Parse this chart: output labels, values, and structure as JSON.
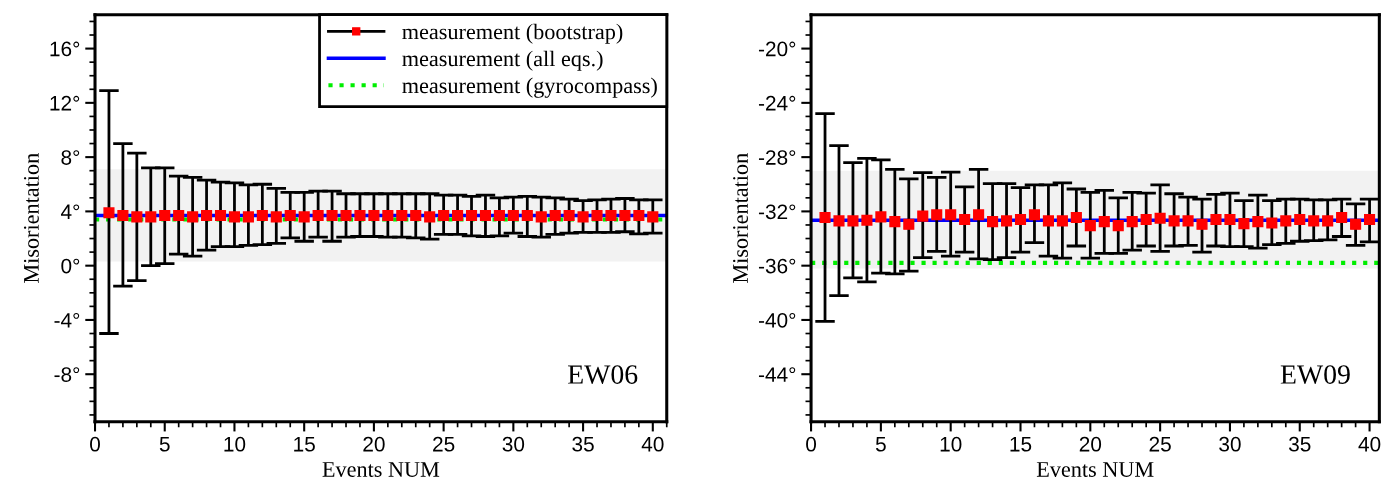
{
  "chart_data": [
    {
      "type": "scatter",
      "xlabel": "Events NUM",
      "ylabel": "Misorientation",
      "xlim": [
        0,
        41
      ],
      "xticks": [
        0,
        5,
        10,
        15,
        20,
        25,
        30,
        35,
        40
      ],
      "ylim": [
        -11.5,
        18.5
      ],
      "yticks": [
        {
          "value": -8,
          "label": "-8°"
        },
        {
          "value": -4,
          "label": "-4°"
        },
        {
          "value": 0,
          "label": "0°"
        },
        {
          "value": 4,
          "label": "4°"
        },
        {
          "value": 8,
          "label": "8°"
        },
        {
          "value": 12,
          "label": "12°"
        },
        {
          "value": 16,
          "label": "16°"
        }
      ],
      "x": [
        1,
        2,
        3,
        4,
        5,
        6,
        7,
        8,
        9,
        10,
        11,
        12,
        13,
        14,
        15,
        16,
        17,
        18,
        19,
        20,
        21,
        22,
        23,
        24,
        25,
        26,
        27,
        28,
        29,
        30,
        31,
        32,
        33,
        34,
        35,
        36,
        37,
        38,
        39,
        40
      ],
      "series": [
        {
          "name": "measurement (bootstrap)",
          "color": "#ff0000",
          "marker": "square",
          "values": [
            3.9,
            3.7,
            3.6,
            3.6,
            3.7,
            3.7,
            3.6,
            3.7,
            3.7,
            3.6,
            3.6,
            3.7,
            3.6,
            3.7,
            3.6,
            3.7,
            3.7,
            3.7,
            3.7,
            3.7,
            3.7,
            3.7,
            3.7,
            3.6,
            3.7,
            3.7,
            3.7,
            3.7,
            3.7,
            3.7,
            3.7,
            3.6,
            3.7,
            3.7,
            3.6,
            3.7,
            3.7,
            3.7,
            3.7,
            3.6
          ],
          "errors": [
            [
              -5.0,
              12.9
            ],
            [
              -1.5,
              9.0
            ],
            [
              -1.1,
              8.3
            ],
            [
              0.0,
              7.2
            ],
            [
              0.15,
              7.2
            ],
            [
              0.85,
              6.6
            ],
            [
              0.7,
              6.5
            ],
            [
              1.15,
              6.3
            ],
            [
              1.4,
              6.15
            ],
            [
              1.4,
              6.1
            ],
            [
              1.5,
              5.95
            ],
            [
              1.55,
              6.0
            ],
            [
              1.65,
              5.7
            ],
            [
              2.05,
              5.4
            ],
            [
              1.8,
              5.4
            ],
            [
              2.1,
              5.5
            ],
            [
              1.8,
              5.5
            ],
            [
              2.1,
              5.3
            ],
            [
              2.15,
              5.3
            ],
            [
              2.15,
              5.3
            ],
            [
              2.1,
              5.3
            ],
            [
              2.1,
              5.3
            ],
            [
              2.05,
              5.3
            ],
            [
              1.95,
              5.3
            ],
            [
              2.3,
              5.2
            ],
            [
              2.3,
              5.2
            ],
            [
              2.2,
              5.1
            ],
            [
              2.15,
              5.2
            ],
            [
              2.2,
              5.0
            ],
            [
              2.4,
              5.05
            ],
            [
              2.15,
              5.1
            ],
            [
              2.1,
              5.05
            ],
            [
              2.3,
              5.0
            ],
            [
              2.4,
              4.9
            ],
            [
              2.45,
              4.8
            ],
            [
              2.45,
              4.85
            ],
            [
              2.45,
              4.9
            ],
            [
              2.5,
              4.95
            ],
            [
              2.35,
              4.85
            ],
            [
              2.4,
              4.85
            ]
          ]
        }
      ],
      "ref_lines": [
        {
          "axis": "y",
          "value": 3.7,
          "label": "measurement (all eqs.)",
          "color": "#0000ff",
          "line_style": "solid"
        },
        {
          "axis": "y",
          "value": 3.4,
          "label": "measurement (gyrocompass)",
          "color": "#00ee00",
          "line_style": "dotted"
        }
      ],
      "bands": [
        {
          "axis": "y",
          "from": 0.3,
          "to": 7.1,
          "color": "#f2f2f2"
        }
      ],
      "annotations": [
        "EW06"
      ],
      "legend": "top right",
      "grid": false
    },
    {
      "type": "scatter",
      "xlabel": "Events NUM",
      "ylabel": "Misorientation",
      "xlim": [
        0,
        40.7
      ],
      "xticks": [
        0,
        5,
        10,
        15,
        20,
        25,
        30,
        35,
        40
      ],
      "ylim": [
        -47.5,
        -17.5
      ],
      "yticks": [
        {
          "value": -44,
          "label": "-44°"
        },
        {
          "value": -40,
          "label": "-40°"
        },
        {
          "value": -36,
          "label": "-36°"
        },
        {
          "value": -32,
          "label": "-32°"
        },
        {
          "value": -28,
          "label": "-28°"
        },
        {
          "value": -24,
          "label": "-24°"
        },
        {
          "value": -20,
          "label": "-20°"
        }
      ],
      "x": [
        1,
        2,
        3,
        4,
        5,
        6,
        7,
        8,
        9,
        10,
        11,
        12,
        13,
        14,
        15,
        16,
        17,
        18,
        19,
        20,
        21,
        22,
        23,
        24,
        25,
        26,
        27,
        28,
        29,
        30,
        31,
        32,
        33,
        34,
        35,
        36,
        37,
        38,
        39,
        40
      ],
      "series": [
        {
          "color": "#ff0000",
          "marker": "square",
          "values": [
            -32.45,
            -32.7,
            -32.7,
            -32.65,
            -32.4,
            -32.75,
            -32.95,
            -32.35,
            -32.25,
            -32.25,
            -32.6,
            -32.25,
            -32.75,
            -32.7,
            -32.6,
            -32.25,
            -32.7,
            -32.7,
            -32.45,
            -33.05,
            -32.75,
            -33.05,
            -32.75,
            -32.6,
            -32.5,
            -32.7,
            -32.7,
            -32.95,
            -32.6,
            -32.6,
            -32.9,
            -32.75,
            -32.85,
            -32.7,
            -32.6,
            -32.7,
            -32.7,
            -32.45,
            -32.95,
            -32.6
          ],
          "errors": [
            [
              -40.1,
              -24.8
            ],
            [
              -38.2,
              -27.15
            ],
            [
              -36.9,
              -28.4
            ],
            [
              -37.2,
              -28.1
            ],
            [
              -36.55,
              -28.2
            ],
            [
              -36.6,
              -28.9
            ],
            [
              -36.4,
              -29.6
            ],
            [
              -35.4,
              -29.15
            ],
            [
              -34.95,
              -29.5
            ],
            [
              -35.3,
              -29.1
            ],
            [
              -35.0,
              -30.2
            ],
            [
              -35.5,
              -28.9
            ],
            [
              -35.55,
              -29.95
            ],
            [
              -35.4,
              -29.95
            ],
            [
              -35.0,
              -30.25
            ],
            [
              -34.3,
              -30.05
            ],
            [
              -35.3,
              -30.05
            ],
            [
              -35.45,
              -29.9
            ],
            [
              -34.55,
              -30.35
            ],
            [
              -35.45,
              -30.6
            ],
            [
              -35.1,
              -30.45
            ],
            [
              -35.1,
              -31.0
            ],
            [
              -34.85,
              -30.6
            ],
            [
              -34.55,
              -30.65
            ],
            [
              -34.95,
              -30.05
            ],
            [
              -34.55,
              -30.7
            ],
            [
              -34.5,
              -30.95
            ],
            [
              -35.0,
              -31.1
            ],
            [
              -34.55,
              -30.75
            ],
            [
              -34.6,
              -30.65
            ],
            [
              -34.6,
              -31.2
            ],
            [
              -34.7,
              -30.8
            ],
            [
              -34.45,
              -31.2
            ],
            [
              -34.35,
              -31.1
            ],
            [
              -34.2,
              -31.1
            ],
            [
              -34.15,
              -31.15
            ],
            [
              -34.1,
              -31.15
            ],
            [
              -33.85,
              -31.1
            ],
            [
              -34.5,
              -31.45
            ],
            [
              -34.25,
              -31.1
            ]
          ]
        }
      ],
      "ref_lines": [
        {
          "axis": "y",
          "value": -32.65,
          "color": "#0000ff",
          "line_style": "solid"
        },
        {
          "axis": "y",
          "value": -35.8,
          "color": "#00ee00",
          "line_style": "dotted"
        }
      ],
      "bands": [
        {
          "axis": "y",
          "from": -36.2,
          "to": -29.0,
          "color": "#f2f2f2"
        }
      ],
      "annotations": [
        "EW09"
      ],
      "grid": false
    }
  ]
}
